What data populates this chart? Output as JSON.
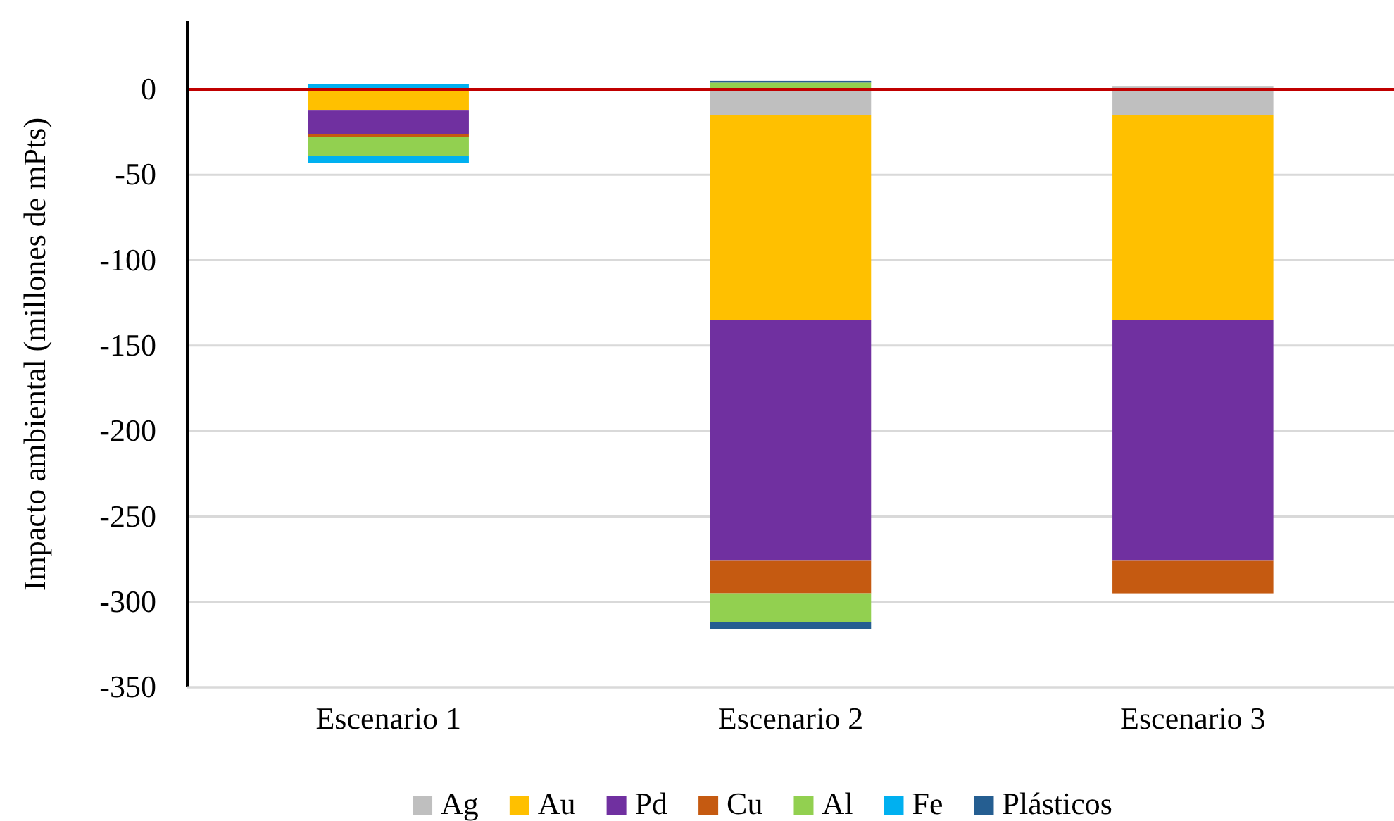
{
  "chart_data": {
    "type": "bar",
    "stacked": true,
    "ylabel": "Impacto ambiental (millones de mPts)",
    "categories": [
      "Escenario 1",
      "Escenario 2",
      "Escenario 3"
    ],
    "series": [
      {
        "name": "Ag",
        "color": "#bfbfbf",
        "values": [
          0,
          -15,
          -15
        ]
      },
      {
        "name": "Au",
        "color": "#ffc000",
        "values": [
          -12,
          -120,
          -120
        ]
      },
      {
        "name": "Pd",
        "color": "#7030a0",
        "values": [
          -14,
          -141,
          -141
        ]
      },
      {
        "name": "Cu",
        "color": "#c55a11",
        "values": [
          -2,
          -19,
          -19
        ]
      },
      {
        "name": "Al",
        "color": "#92d050",
        "values": [
          -11,
          -17,
          0
        ]
      },
      {
        "name": "Fe",
        "color": "#00b0f0",
        "values": [
          -4,
          0,
          0
        ]
      },
      {
        "name": "Plásticos",
        "color": "#255e91",
        "values": [
          0,
          -4,
          0
        ]
      },
      {
        "color": "#bfbfbf",
        "values": [
          0,
          0,
          2
        ]
      },
      {
        "color": "#92d050",
        "values": [
          0,
          4,
          0
        ]
      },
      {
        "color": "#00b0f0",
        "values": [
          3,
          0,
          0
        ]
      },
      {
        "color": "#255e91",
        "values": [
          0,
          1,
          0
        ]
      }
    ],
    "ylim": [
      -350,
      40
    ],
    "yticks": [
      -350,
      -300,
      -250,
      -200,
      -150,
      -100,
      -50,
      0
    ],
    "grid": "y",
    "legend": "bottom",
    "ref_lines": [
      {
        "axis": "y",
        "value": 0,
        "color": "#c00000"
      }
    ]
  }
}
